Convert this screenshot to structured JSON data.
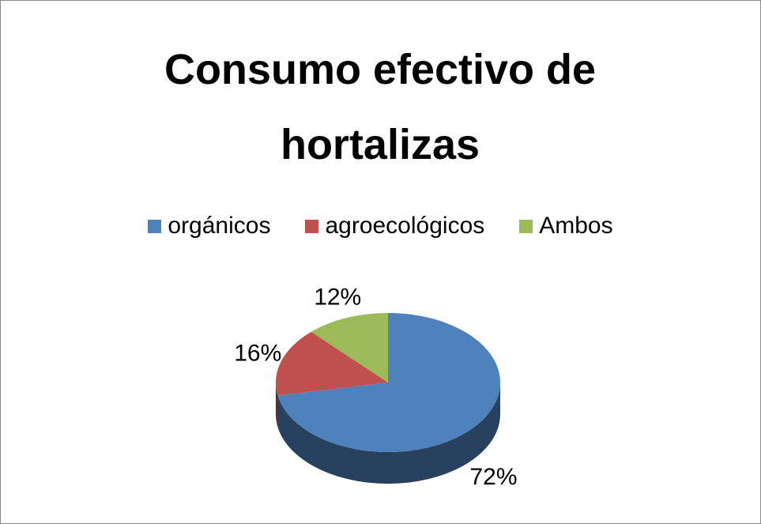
{
  "chart_data": {
    "type": "pie3d",
    "title": "Consumo efectivo de hortalizas",
    "categories": [
      "orgánicos",
      "agroecológicos",
      "Ambos"
    ],
    "values": [
      72,
      16,
      12
    ],
    "value_labels": [
      "72%",
      "16%",
      "12%"
    ],
    "colors": [
      "#4f81bd",
      "#c0504d",
      "#9bbb59"
    ],
    "legend": "top"
  }
}
